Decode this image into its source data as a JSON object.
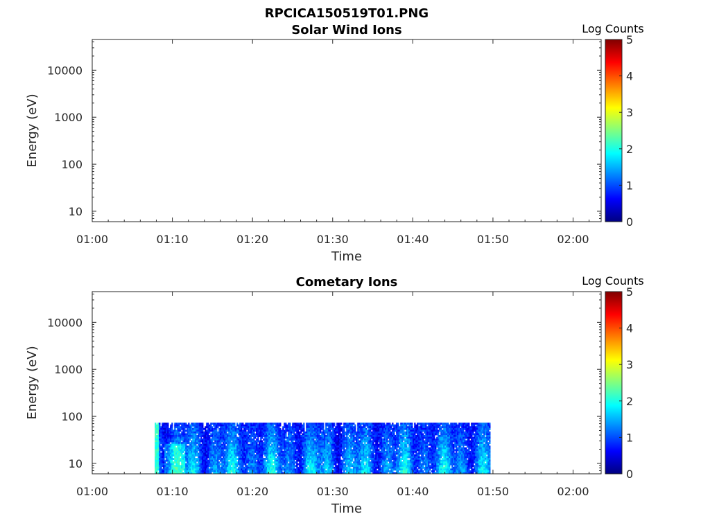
{
  "figure": {
    "title": "RPCICA150519T01.PNG"
  },
  "colors": {
    "colormap": [
      "#000080",
      "#0000ff",
      "#0080ff",
      "#00ffff",
      "#80ff80",
      "#ffff00",
      "#ff8000",
      "#ff0000",
      "#800000"
    ]
  },
  "chart_data": [
    {
      "type": "heatmap",
      "title": "Solar Wind Ions",
      "xlabel": "Time",
      "ylabel": "Energy (eV)",
      "x_ticks": [
        "01:00",
        "01:10",
        "01:20",
        "01:30",
        "01:40",
        "01:50",
        "02:00"
      ],
      "x_range_min": [
        0,
        63.5
      ],
      "y_scale": "log",
      "y_ticks": [
        10,
        100,
        1000,
        10000
      ],
      "y_tick_labels": [
        "10",
        "100",
        "1000",
        "10000"
      ],
      "y_range": [
        6,
        45000
      ],
      "colorbar": {
        "label": "Log Counts",
        "range": [
          0,
          5
        ],
        "ticks": [
          "0",
          "1",
          "2",
          "3",
          "4",
          "5"
        ]
      },
      "data_present": false
    },
    {
      "type": "heatmap",
      "title": "Cometary Ions",
      "xlabel": "Time",
      "ylabel": "Energy (eV)",
      "x_ticks": [
        "01:00",
        "01:10",
        "01:20",
        "01:30",
        "01:40",
        "01:50",
        "02:00"
      ],
      "x_range_min": [
        0,
        63.5
      ],
      "y_scale": "log",
      "y_ticks": [
        10,
        100,
        1000,
        10000
      ],
      "y_tick_labels": [
        "10",
        "100",
        "1000",
        "10000"
      ],
      "y_range": [
        6,
        45000
      ],
      "colorbar": {
        "label": "Log Counts",
        "range": [
          0,
          5
        ],
        "ticks": [
          "0",
          "1",
          "2",
          "3",
          "4",
          "5"
        ]
      },
      "data_present": true,
      "data_time_range_min": [
        7.8,
        49.6
      ],
      "data_energy_range_ev": [
        6,
        80
      ],
      "typical_log_counts": [
        0.2,
        1.8
      ]
    }
  ]
}
